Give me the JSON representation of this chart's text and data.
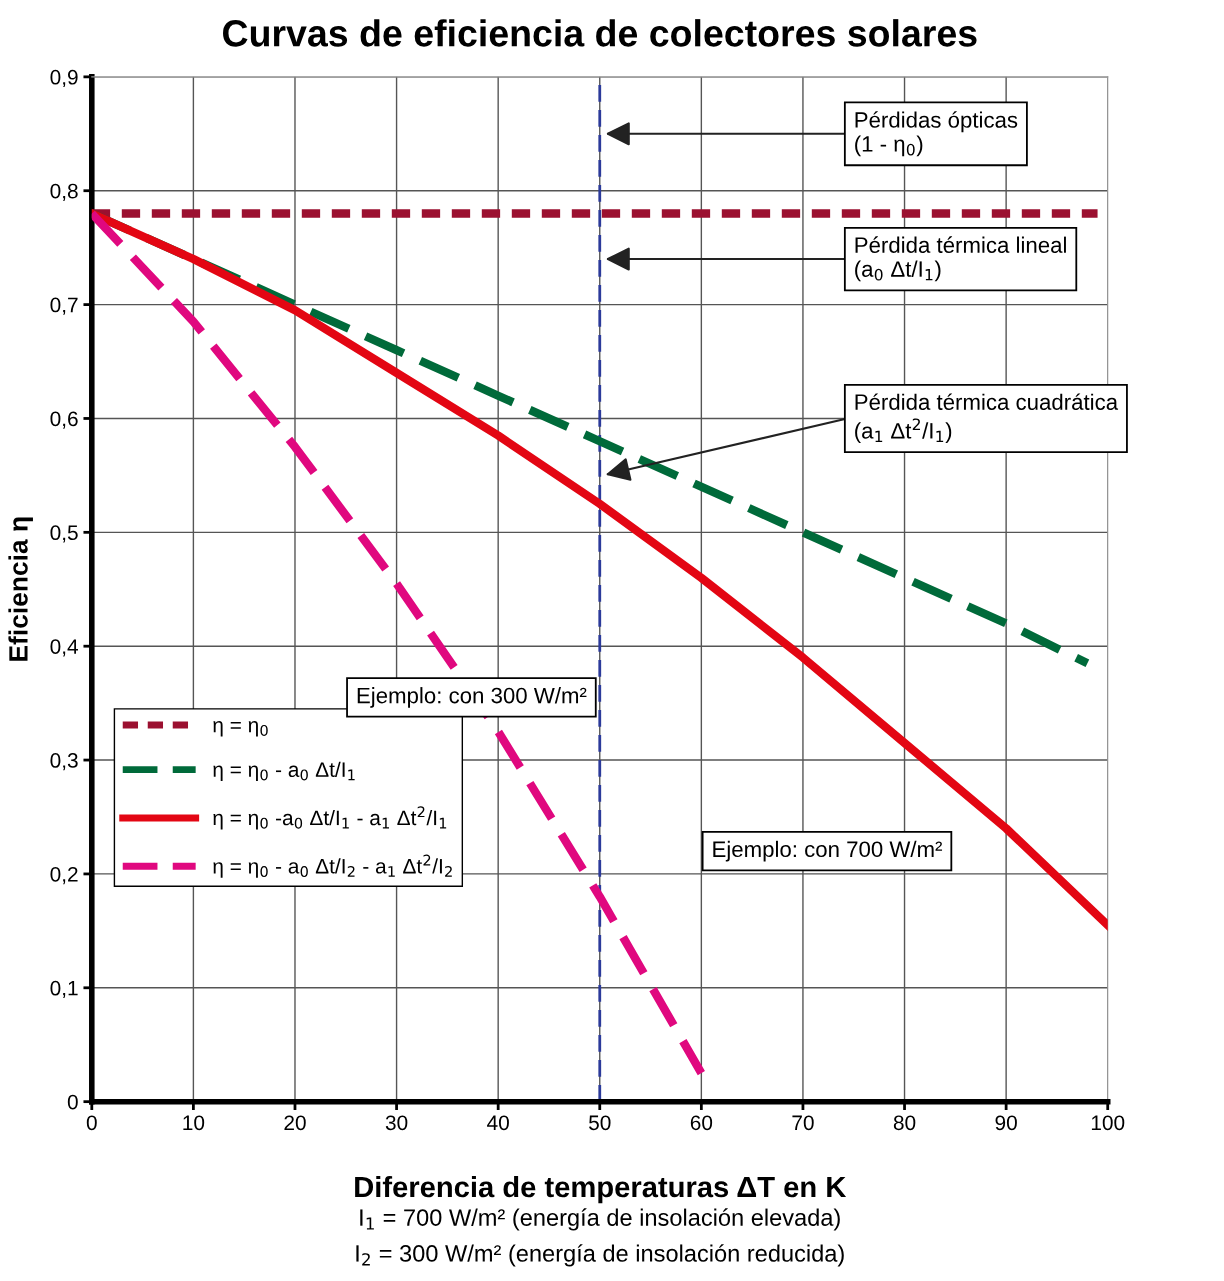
{
  "chart_data": {
    "type": "line",
    "title": "Curvas de eficiencia de colectores solares",
    "xlabel": "Diferencia de temperaturas ΔT en K",
    "ylabel": "Eficiencia η",
    "series": [
      {
        "name": "η = η$_{0}$",
        "color": "#9b1030",
        "line_style": "dotted",
        "x": [
          0,
          10,
          20,
          30,
          40,
          50,
          60,
          70,
          80,
          90,
          99
        ],
        "values": [
          0.78,
          0.78,
          0.78,
          0.78,
          0.78,
          0.78,
          0.78,
          0.78,
          0.78,
          0.78,
          0.78
        ]
      },
      {
        "name": "η = η$_{0}$ - a$_{0}$ Δt/I$_{1}$",
        "color": "#006a3a",
        "line_style": "dashed",
        "x": [
          0,
          10,
          20,
          30,
          40,
          50,
          60,
          70,
          80,
          90,
          98
        ],
        "values": [
          0.78,
          0.74,
          0.7,
          0.66,
          0.62,
          0.58,
          0.54,
          0.5,
          0.46,
          0.42,
          0.385
        ]
      },
      {
        "name": "η = η$_{0}$ -a$_{0}$ Δt/I$_{1}$ - a$_{1}$ Δt$^{2}$/I$_{1}$",
        "color": "#e30613",
        "line_style": "solid",
        "x": [
          0,
          10,
          20,
          30,
          40,
          50,
          60,
          70,
          80,
          90,
          100
        ],
        "values": [
          0.78,
          0.74,
          0.695,
          0.64,
          0.585,
          0.525,
          0.46,
          0.39,
          0.315,
          0.24,
          0.155
        ]
      },
      {
        "name": "η = η$_{0}$ - a$_{0}$ Δt/I$_{2}$ - a$_{1}$ Δt$^{2}$/I$_{2}$",
        "color": "#e0087f",
        "line_style": "dashed",
        "x": [
          0,
          10,
          20,
          30,
          40,
          50,
          60
        ],
        "values": [
          0.78,
          0.685,
          0.575,
          0.455,
          0.325,
          0.18,
          0.025
        ]
      }
    ],
    "xlim": [
      0,
      100
    ],
    "ylim": [
      0,
      0.9
    ],
    "xticks": [
      0,
      10,
      20,
      30,
      40,
      50,
      60,
      70,
      80,
      90,
      100
    ],
    "yticks": [
      0,
      {
        "value": 0.1,
        "label": "0,1"
      },
      {
        "value": 0.2,
        "label": "0,2"
      },
      {
        "value": 0.3,
        "label": "0,3"
      },
      {
        "value": 0.4,
        "label": "0,4"
      },
      {
        "value": 0.5,
        "label": "0,5"
      },
      {
        "value": 0.6,
        "label": "0,6"
      },
      {
        "value": 0.7,
        "label": "0,7"
      },
      {
        "value": 0.8,
        "label": "0,8"
      },
      {
        "value": 0.9,
        "label": "0,9"
      }
    ],
    "grid": true,
    "legend": "bottom left",
    "marker": "none",
    "ref_lines": [
      {
        "axis": "x",
        "value": 50,
        "color": "#2b3a9a",
        "line_style": "dashed"
      }
    ],
    "annotations": [
      "Pérdidas ópticas\n(1 - η$_{0}$)",
      "Pérdida térmica lineal\n(a$_{0}$ Δt/I$_{1}$)",
      "Pérdida térmica cuadrática\n(a$_{1}$ Δt$^{2}$/I$_{1}$)",
      "Ejemplo: con 300 W/m²",
      "Ejemplo: con 700 W/m²",
      "I$_{1}$ = 700 W/m² (energía de insolación elevada)",
      "I$_{2}$ = 300 W/m² (energía de insolación reducida)"
    ]
  }
}
